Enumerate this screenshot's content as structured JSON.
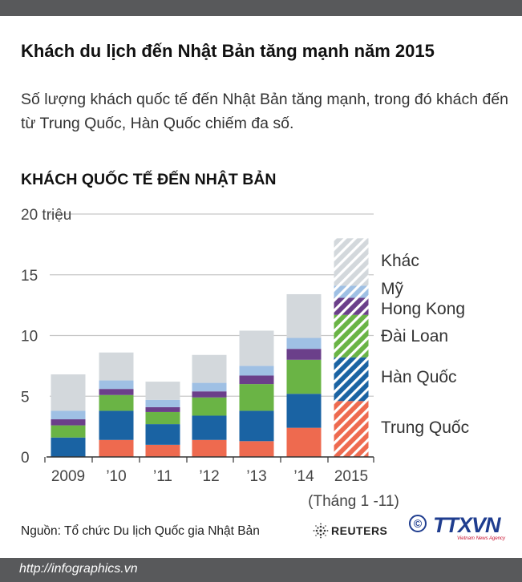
{
  "header": {
    "title": "Khách du lịch đến Nhật Bản tăng mạnh năm 2015",
    "subtitle": "Số lượng khách quốc tế đến Nhật Bản tăng mạnh, trong đó khách đến từ Trung Quốc, Hàn Quốc chiếm đa số."
  },
  "colors": {
    "trung_quoc": "#ee6a4f",
    "han_quoc": "#1a63a3",
    "dai_loan": "#6ab445",
    "hong_kong": "#6b3f8a",
    "my": "#9fc0e4",
    "khac": "#d3d8dc",
    "grid": "#c8c8c8",
    "bars_2015_pattern": "hatched"
  },
  "chart_data": {
    "type": "bar",
    "stacked": true,
    "title": "KHÁCH QUỐC TẾ ĐẾN NHẬT BẢN",
    "ylabel": "",
    "y_unit_label": "20 triệu",
    "ylim": [
      0,
      20
    ],
    "yticks": [
      "0",
      "5",
      "10",
      "15",
      "20 triệu"
    ],
    "categories": [
      "2009",
      "’10",
      "’11",
      "’12",
      "’13",
      "’14",
      "2015"
    ],
    "category_note": "(Tháng 1 -11)",
    "grid": true,
    "legend_placement": "right",
    "series": [
      {
        "name": "Trung Quốc",
        "values": [
          0.0,
          1.4,
          1.0,
          1.4,
          1.3,
          2.4,
          4.6
        ]
      },
      {
        "name": "Hàn Quốc",
        "values": [
          1.6,
          2.4,
          1.7,
          2.0,
          2.5,
          2.8,
          3.6
        ]
      },
      {
        "name": "Đài Loan",
        "values": [
          1.0,
          1.3,
          1.0,
          1.5,
          2.2,
          2.8,
          3.5
        ]
      },
      {
        "name": "Hong Kong",
        "values": [
          0.5,
          0.5,
          0.4,
          0.5,
          0.7,
          0.9,
          1.4
        ]
      },
      {
        "name": "Mỹ",
        "values": [
          0.7,
          0.7,
          0.6,
          0.7,
          0.8,
          0.9,
          1.0
        ]
      },
      {
        "name": "Khác",
        "values": [
          3.0,
          2.3,
          1.5,
          2.3,
          2.9,
          3.6,
          3.9
        ]
      }
    ]
  },
  "footer": {
    "source": "Nguồn: Tổ chức Du lịch Quốc gia Nhật Bản",
    "reuters": "REUTERS",
    "agency_logo": "TTXVN",
    "agency_sub": "Vietnam News Agency",
    "copyright_symbol": "©",
    "url": "http://infographics.vn"
  }
}
